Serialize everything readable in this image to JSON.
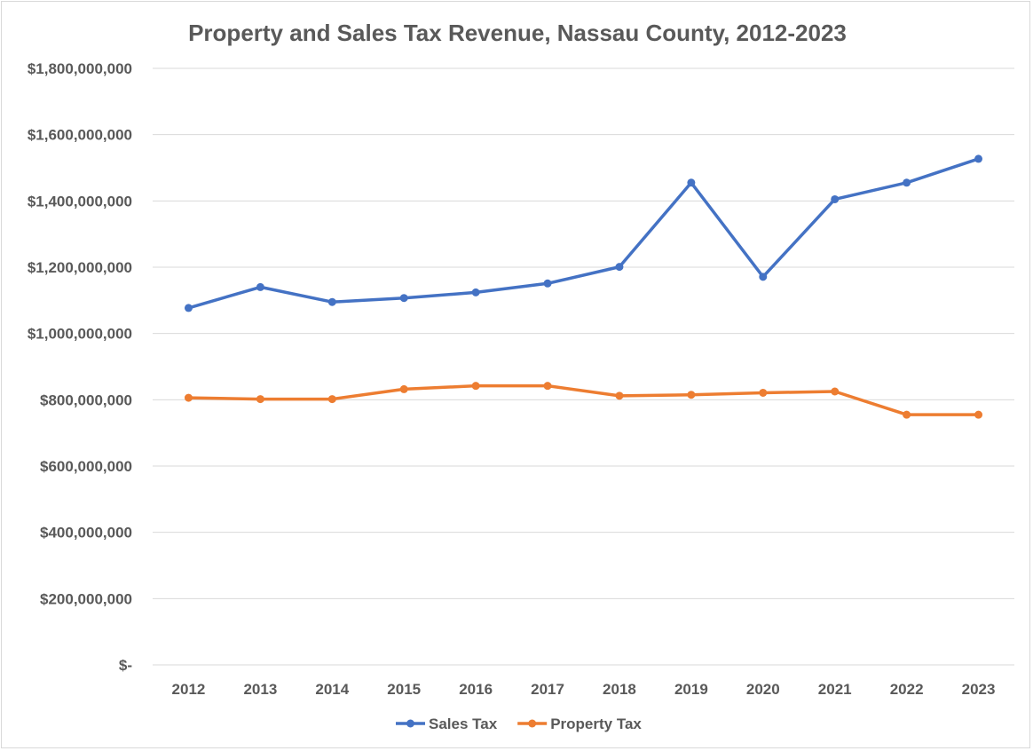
{
  "chart_data": {
    "type": "line",
    "title": "Property and Sales Tax Revenue, Nassau County, 2012-2023",
    "xlabel": "",
    "ylabel": "",
    "categories": [
      "2012",
      "2013",
      "2014",
      "2015",
      "2016",
      "2017",
      "2018",
      "2019",
      "2020",
      "2021",
      "2022",
      "2023"
    ],
    "y_tick_labels": [
      "$-",
      "$200,000,000",
      "$400,000,000",
      "$600,000,000",
      "$800,000,000",
      "$1,000,000,000",
      "$1,200,000,000",
      "$1,400,000,000",
      "$1,600,000,000",
      "$1,800,000,000"
    ],
    "y_tick_values": [
      0,
      200000000,
      400000000,
      600000000,
      800000000,
      1000000000,
      1200000000,
      1400000000,
      1600000000,
      1800000000
    ],
    "ylim": [
      0,
      1800000000
    ],
    "grid": true,
    "legend_position": "bottom",
    "series": [
      {
        "name": "Sales Tax",
        "color": "#4472c4",
        "values": [
          1077000000,
          1140000000,
          1095000000,
          1107000000,
          1124000000,
          1151000000,
          1201000000,
          1455000000,
          1171000000,
          1405000000,
          1455000000,
          1527000000
        ]
      },
      {
        "name": "Property Tax",
        "color": "#ed7d31",
        "values": [
          806000000,
          802000000,
          802000000,
          832000000,
          842000000,
          842000000,
          812000000,
          815000000,
          821000000,
          825000000,
          755000000,
          755000000
        ]
      }
    ]
  }
}
